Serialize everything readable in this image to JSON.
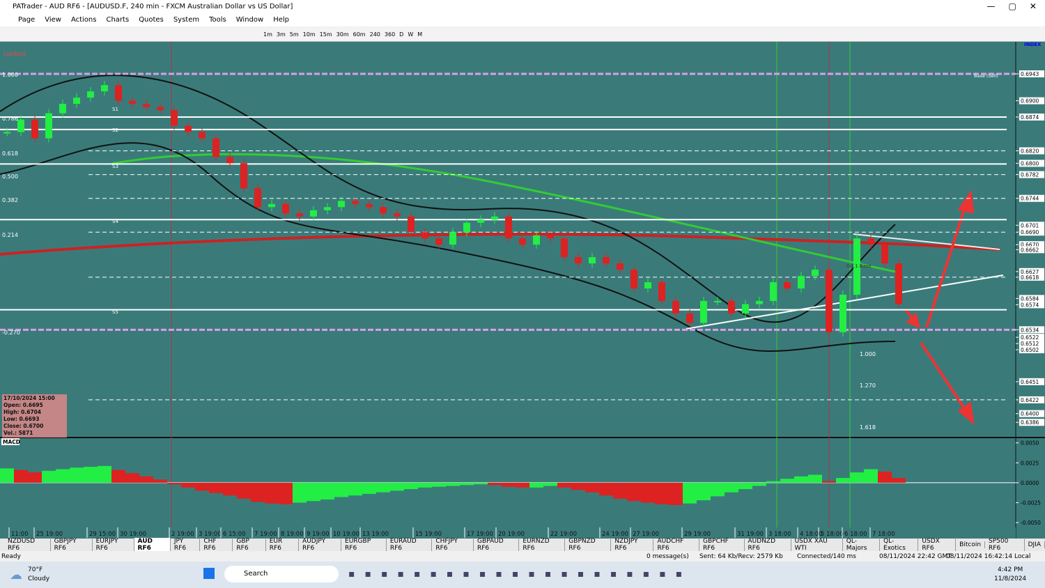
{
  "window": {
    "title": "PATrader - AUD RF6 - [AUDUSD.F, 240 min - FXCM Australian Dollar vs US Dollar]",
    "menu": [
      "Page",
      "View",
      "Actions",
      "Charts",
      "Quotes",
      "System",
      "Tools",
      "Window",
      "Help"
    ],
    "timeframes": [
      "1m",
      "3m",
      "5m",
      "10m",
      "15m",
      "30m",
      "60m",
      "240",
      "360",
      "D",
      "W",
      "M"
    ]
  },
  "chart_data": [
    {
      "type": "candlestick",
      "color_up": "#22ee44",
      "color_down": "#dd2222",
      "ylim": [
        0.6364,
        0.6992
      ],
      "yticks": [
        {
          "value": 0.6943,
          "label": "0.6943"
        },
        {
          "value": 0.69,
          "label": "0.6900"
        },
        {
          "value": 0.6874,
          "label": "0.6874"
        },
        {
          "value": 0.682,
          "label": "0.6820"
        },
        {
          "value": 0.68,
          "label": "0.6800"
        },
        {
          "value": 0.6782,
          "label": "0.6782"
        },
        {
          "value": 0.6744,
          "label": "0.6744"
        },
        {
          "value": 0.6701,
          "label": "0.6701"
        },
        {
          "value": 0.669,
          "label": "0.6690"
        },
        {
          "value": 0.667,
          "label": "0.6670"
        },
        {
          "value": 0.6662,
          "label": "0.6662"
        },
        {
          "value": 0.6627,
          "label": "0.6627"
        },
        {
          "value": 0.6618,
          "label": "0.6618"
        },
        {
          "value": 0.6584,
          "label": "0.6584"
        },
        {
          "value": 0.6574,
          "label": "0.6574"
        },
        {
          "value": 0.6534,
          "label": "0.6534"
        },
        {
          "value": 0.6522,
          "label": "0.6522"
        },
        {
          "value": 0.6512,
          "label": "0.6512"
        },
        {
          "value": 0.6502,
          "label": "0.6502"
        },
        {
          "value": 0.6451,
          "label": "0.6451"
        },
        {
          "value": 0.6422,
          "label": "0.6422"
        },
        {
          "value": 0.64,
          "label": "0.6400"
        },
        {
          "value": 0.6386,
          "label": "0.6386"
        }
      ],
      "closes": [
        0.685,
        0.687,
        0.684,
        0.688,
        0.6895,
        0.6905,
        0.6915,
        0.6925,
        0.69,
        0.6895,
        0.689,
        0.6885,
        0.686,
        0.685,
        0.684,
        0.681,
        0.68,
        0.676,
        0.673,
        0.6735,
        0.672,
        0.6715,
        0.6725,
        0.673,
        0.674,
        0.6735,
        0.673,
        0.672,
        0.6715,
        0.669,
        0.668,
        0.667,
        0.669,
        0.6705,
        0.671,
        0.6715,
        0.668,
        0.667,
        0.6685,
        0.668,
        0.665,
        0.664,
        0.665,
        0.664,
        0.663,
        0.66,
        0.661,
        0.658,
        0.656,
        0.6545,
        0.658,
        0.658,
        0.656,
        0.6575,
        0.658,
        0.661,
        0.66,
        0.662,
        0.663,
        0.653,
        0.659,
        0.668,
        0.667,
        0.664,
        0.6575
      ],
      "levels": [
        {
          "value": 0.6874,
          "style": "solid"
        },
        {
          "value": 0.6854,
          "style": "solid"
        },
        {
          "value": 0.6799,
          "style": "solid"
        },
        {
          "value": 0.671,
          "style": "solid"
        },
        {
          "value": 0.6566,
          "style": "solid"
        },
        {
          "value": 0.682,
          "style": "dashed"
        },
        {
          "value": 0.6782,
          "style": "dashed"
        },
        {
          "value": 0.6744,
          "style": "dashed"
        },
        {
          "value": 0.669,
          "style": "dashed"
        },
        {
          "value": 0.6618,
          "style": "dashed"
        },
        {
          "value": 0.6422,
          "style": "dashed"
        }
      ],
      "labels": {
        "locked": "Locked",
        "index": "INDEX",
        "base_sell": "Base (Sell)",
        "gd_base": "Gd.1 Base",
        "fib_left": [
          "1.000",
          "0.786",
          "0.618",
          "0.500",
          "0.382",
          "0.214",
          "-0.270"
        ],
        "fib_right": [
          "1.000",
          "1.270",
          "1.618"
        ],
        "pivots": [
          "S1",
          "S2",
          "S3",
          "S4",
          "S5"
        ]
      },
      "info_box": [
        "17/10/2024 15:00",
        "Open: 0.6695",
        "High: 0.6704",
        "Low: 0.6693",
        "Close: 0.6700",
        "Vol.: 5871"
      ]
    },
    {
      "type": "histogram",
      "title": "MACD",
      "ylim": [
        -0.0056,
        0.0055
      ],
      "yticks": [
        {
          "value": 0.005,
          "label": "0.0050"
        },
        {
          "value": 0.0025,
          "label": "0.0025"
        },
        {
          "value": 0,
          "label": "0.0000"
        },
        {
          "value": -0.0025,
          "label": "-0.0025"
        },
        {
          "value": -0.005,
          "label": "-0.0050"
        }
      ],
      "values": [
        0.0018,
        0.0016,
        0.0013,
        0.0015,
        0.0017,
        0.0019,
        0.002,
        0.0021,
        0.0016,
        0.0012,
        0.0008,
        0.0004,
        -0.0002,
        -0.0006,
        -0.001,
        -0.0013,
        -0.0016,
        -0.002,
        -0.0024,
        -0.0026,
        -0.0027,
        -0.0025,
        -0.0023,
        -0.0021,
        -0.0018,
        -0.0016,
        -0.0014,
        -0.0012,
        -0.001,
        -0.0008,
        -0.0006,
        -0.0005,
        -0.0004,
        -0.0003,
        -0.0002,
        -0.0003,
        -0.0005,
        -0.0006,
        -0.0006,
        -0.0004,
        -0.0006,
        -0.0009,
        -0.0012,
        -0.0016,
        -0.002,
        -0.0023,
        -0.0025,
        -0.0027,
        -0.0028,
        -0.0026,
        -0.0022,
        -0.0017,
        -0.0012,
        -0.0008,
        -0.0004,
        0.0002,
        0.0005,
        0.0008,
        0.001,
        0.0002,
        0.0006,
        0.0013,
        0.0017,
        0.0014,
        0.0006
      ]
    }
  ],
  "time_axis": [
    "11:00",
    "25 19:00",
    "29 15:00",
    "30 19:00",
    "2 19:00",
    "3 19:00",
    "6 15:00",
    "7 19:00",
    "8 19:00",
    "9 19:00",
    "10 19:00",
    "13 19:00",
    "15 19:00",
    "17 19:00",
    "20 19:00",
    "22 19:00",
    "24 19:00",
    "27 19:00",
    "29 19:00",
    "31 19:00",
    "3 18:00",
    "4 18:00",
    "5 18:00",
    "6 18:00",
    "7 18:00"
  ],
  "tabs": [
    "NZDUSD RF6",
    "GBPJPY RF6",
    "EURJPY RF6",
    "AUD RF6",
    "JPY RF6",
    "CHF RF6",
    "GBP RF6",
    "EUR RF6",
    "AUDJPY RF6",
    "EURGBP RF6",
    "EURAUD RF6",
    "CHFJPY RF6",
    "GBPAUD RF6",
    "EURNZD RF6",
    "GBPNZD RF6",
    "NZDJPY RF6",
    "AUDCHF RF6",
    "GBPCHF RF6",
    "AUDNZD RF6",
    "USDX XAU WTI",
    "QL-Majors",
    "QL-Exotics",
    "USDX RF6",
    "Bitcoin",
    "SP500 RF6",
    "DJIA"
  ],
  "status": {
    "ready": "Ready",
    "messages": "0 message(s)",
    "traffic": "Sent: 64 Kb/Recv: 2579 Kb",
    "connection": "Connected/140 ms",
    "gmt": "08/11/2024 22:42 GMT",
    "local": "08/11/2024 16:42:14 Local"
  },
  "taskbar": {
    "temp": "70°F",
    "weather": "Cloudy",
    "search": "Search",
    "time": "4:42 PM",
    "date": "11/8/2024"
  }
}
